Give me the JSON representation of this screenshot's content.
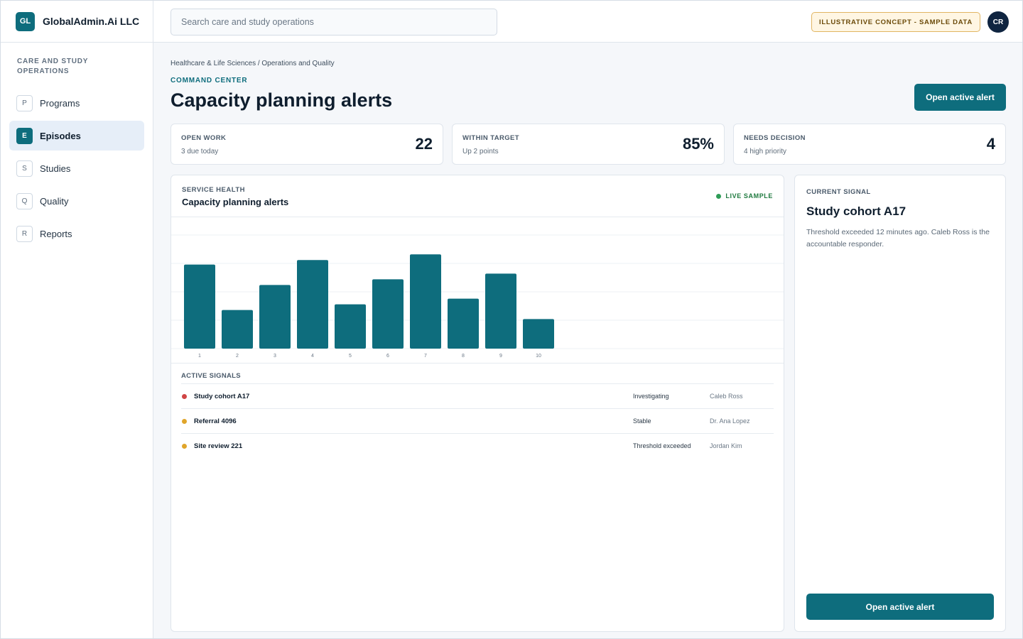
{
  "brand": {
    "logo": "GL",
    "name": "GlobalAdmin.Ai LLC"
  },
  "sidebar": {
    "section": "Care and Study Operations",
    "items": [
      {
        "key": "P",
        "label": "Programs",
        "active": false
      },
      {
        "key": "E",
        "label": "Episodes",
        "active": true
      },
      {
        "key": "S",
        "label": "Studies",
        "active": false
      },
      {
        "key": "Q",
        "label": "Quality",
        "active": false
      },
      {
        "key": "R",
        "label": "Reports",
        "active": false
      }
    ]
  },
  "header": {
    "search_placeholder": "Search care and study operations",
    "badge": "ILLUSTRATIVE CONCEPT - SAMPLE DATA",
    "avatar": "CR"
  },
  "main": {
    "breadcrumb": "Healthcare & Life Sciences / Operations and Quality",
    "eyebrow": "Command Center",
    "title": "Capacity planning alerts",
    "primary_action": "Open active alert"
  },
  "kpis": [
    {
      "label": "Open work",
      "sub": "3 due today",
      "value": "22"
    },
    {
      "label": "Within target",
      "sub": "Up 2 points",
      "value": "85%"
    },
    {
      "label": "Needs decision",
      "sub": "4 high priority",
      "value": "4"
    }
  ],
  "panel": {
    "eyebrow": "Service health",
    "title": "Capacity planning alerts",
    "live_label": "Live sample",
    "signals_title": "Active signals",
    "signals": [
      {
        "name": "Study cohort A17",
        "status": "Investigating",
        "owner": "Caleb Ross",
        "color": "#d04545"
      },
      {
        "name": "Referral 4096",
        "status": "Stable",
        "owner": "Dr. Ana Lopez",
        "color": "#e0a52a"
      },
      {
        "name": "Site review 221",
        "status": "Threshold exceeded",
        "owner": "Jordan Kim",
        "color": "#e0a52a"
      }
    ]
  },
  "chart_data": {
    "type": "bar",
    "categories": [
      "1",
      "2",
      "3",
      "4",
      "5",
      "6",
      "7",
      "8",
      "9",
      "10"
    ],
    "values": [
      74,
      34,
      56,
      78,
      39,
      61,
      83,
      44,
      66,
      26
    ],
    "ylim": [
      0,
      100
    ],
    "grid": true,
    "bar_color": "#0e6d7d"
  },
  "side": {
    "eyebrow": "Current signal",
    "title": "Study cohort A17",
    "body": "Threshold exceeded 12 minutes ago. Caleb Ross is the accountable responder.",
    "action": "Open active alert"
  },
  "colors": {
    "accent": "#0e6d7d",
    "live": "#2e9c57",
    "badge_bg": "#fff6e3",
    "badge_border": "#e1b562"
  }
}
